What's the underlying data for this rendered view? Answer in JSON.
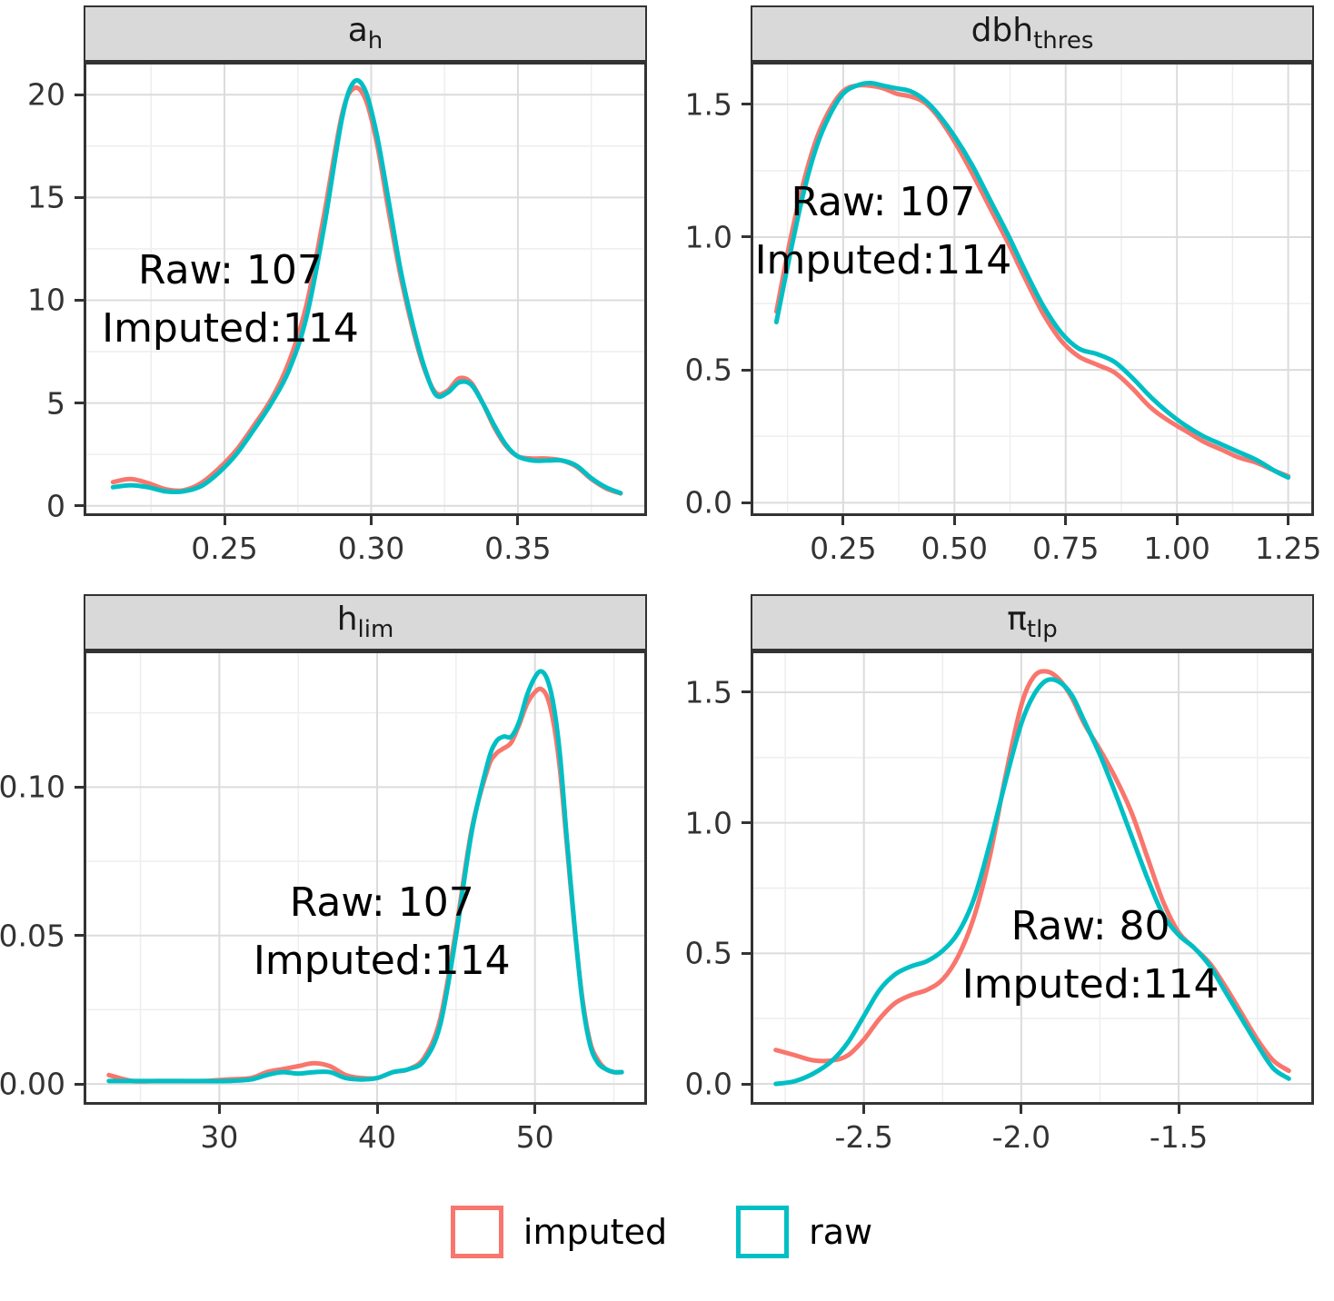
{
  "figure": {
    "description": "Faceted density plots comparing raw vs imputed parameter distributions"
  },
  "colors": {
    "imputed": "#F8766D",
    "raw": "#00BFC4",
    "strip_bg": "#D9D9D9",
    "panel_border": "#333333",
    "grid_major": "#DCDCDC",
    "grid_minor": "#EEEEEE",
    "axis_text": "#333333"
  },
  "legend": {
    "items": [
      {
        "label": "imputed",
        "color": "#F8766D"
      },
      {
        "label": "raw",
        "color": "#00BFC4"
      }
    ]
  },
  "chart_data": [
    {
      "type": "line",
      "title": {
        "main": "a",
        "sub": "h"
      },
      "xlim": [
        0.202,
        0.394
      ],
      "ylim": [
        -0.5,
        21.6
      ],
      "xticks": [
        0.25,
        0.3,
        0.35
      ],
      "xtick_labels": [
        "0.25",
        "0.30",
        "0.35"
      ],
      "yticks": [
        0,
        5,
        10,
        15,
        20
      ],
      "ytick_labels": [
        "0",
        "5",
        "10",
        "15",
        "20"
      ],
      "annotation": {
        "lines": [
          "Raw: 107",
          "Imputed:114"
        ],
        "x": 0.252,
        "y": 10.0
      },
      "series": [
        {
          "name": "imputed",
          "color": "#F8766D",
          "x": [
            0.212,
            0.218,
            0.224,
            0.23,
            0.236,
            0.242,
            0.248,
            0.254,
            0.26,
            0.266,
            0.272,
            0.278,
            0.284,
            0.29,
            0.294,
            0.298,
            0.302,
            0.306,
            0.31,
            0.314,
            0.318,
            0.322,
            0.326,
            0.33,
            0.334,
            0.338,
            0.342,
            0.346,
            0.35,
            0.355,
            0.36,
            0.365,
            0.37,
            0.375,
            0.38,
            0.385
          ],
          "y": [
            1.15,
            1.3,
            1.1,
            0.8,
            0.75,
            1.1,
            1.8,
            2.7,
            3.9,
            5.2,
            7.0,
            9.8,
            14.2,
            19.0,
            20.3,
            19.8,
            17.6,
            14.3,
            11.2,
            8.7,
            6.7,
            5.5,
            5.6,
            6.2,
            6.0,
            5.0,
            3.8,
            2.9,
            2.4,
            2.3,
            2.3,
            2.2,
            1.9,
            1.3,
            0.85,
            0.6
          ]
        },
        {
          "name": "raw",
          "color": "#00BFC4",
          "x": [
            0.212,
            0.218,
            0.224,
            0.23,
            0.236,
            0.242,
            0.248,
            0.254,
            0.26,
            0.266,
            0.272,
            0.278,
            0.284,
            0.29,
            0.294,
            0.298,
            0.302,
            0.306,
            0.31,
            0.314,
            0.318,
            0.322,
            0.326,
            0.33,
            0.334,
            0.338,
            0.342,
            0.346,
            0.35,
            0.355,
            0.36,
            0.365,
            0.37,
            0.375,
            0.38,
            0.385
          ],
          "y": [
            0.9,
            1.0,
            0.9,
            0.7,
            0.7,
            0.95,
            1.6,
            2.5,
            3.7,
            5.0,
            6.6,
            9.2,
            13.6,
            18.8,
            20.6,
            20.2,
            18.0,
            14.8,
            11.5,
            8.9,
            6.8,
            5.4,
            5.5,
            6.0,
            5.9,
            5.0,
            3.9,
            2.95,
            2.4,
            2.2,
            2.2,
            2.2,
            1.95,
            1.35,
            0.9,
            0.62
          ]
        }
      ]
    },
    {
      "type": "line",
      "title": {
        "main": "dbh",
        "sub": "thres"
      },
      "xlim": [
        0.042,
        1.308
      ],
      "ylim": [
        -0.05,
        1.66
      ],
      "xticks": [
        0.25,
        0.5,
        0.75,
        1.0,
        1.25
      ],
      "xtick_labels": [
        "0.25",
        "0.50",
        "0.75",
        "1.00",
        "1.25"
      ],
      "yticks": [
        0.0,
        0.5,
        1.0,
        1.5
      ],
      "ytick_labels": [
        "0.0",
        "0.5",
        "1.0",
        "1.5"
      ],
      "annotation": {
        "lines": [
          "Raw: 107",
          "Imputed:114"
        ],
        "x": 0.34,
        "y": 1.02
      },
      "series": [
        {
          "name": "imputed",
          "color": "#F8766D",
          "x": [
            0.1,
            0.13,
            0.16,
            0.19,
            0.22,
            0.25,
            0.28,
            0.31,
            0.34,
            0.37,
            0.4,
            0.43,
            0.46,
            0.5,
            0.54,
            0.58,
            0.62,
            0.66,
            0.7,
            0.74,
            0.78,
            0.82,
            0.86,
            0.9,
            0.94,
            0.98,
            1.02,
            1.06,
            1.1,
            1.14,
            1.18,
            1.22,
            1.25
          ],
          "y": [
            0.72,
            0.98,
            1.2,
            1.37,
            1.48,
            1.55,
            1.57,
            1.57,
            1.56,
            1.54,
            1.53,
            1.51,
            1.46,
            1.36,
            1.24,
            1.11,
            0.98,
            0.84,
            0.71,
            0.61,
            0.55,
            0.52,
            0.49,
            0.43,
            0.36,
            0.31,
            0.27,
            0.23,
            0.2,
            0.17,
            0.15,
            0.12,
            0.1
          ]
        },
        {
          "name": "raw",
          "color": "#00BFC4",
          "x": [
            0.1,
            0.13,
            0.16,
            0.19,
            0.22,
            0.25,
            0.28,
            0.31,
            0.34,
            0.37,
            0.4,
            0.43,
            0.46,
            0.5,
            0.54,
            0.58,
            0.62,
            0.66,
            0.7,
            0.74,
            0.78,
            0.82,
            0.86,
            0.9,
            0.94,
            0.98,
            1.02,
            1.06,
            1.1,
            1.14,
            1.18,
            1.22,
            1.25
          ],
          "y": [
            0.68,
            0.93,
            1.16,
            1.34,
            1.46,
            1.54,
            1.57,
            1.58,
            1.57,
            1.56,
            1.55,
            1.52,
            1.47,
            1.38,
            1.27,
            1.14,
            1.01,
            0.87,
            0.74,
            0.64,
            0.58,
            0.56,
            0.53,
            0.47,
            0.4,
            0.34,
            0.29,
            0.25,
            0.22,
            0.19,
            0.16,
            0.12,
            0.095
          ]
        }
      ]
    },
    {
      "type": "line",
      "title": {
        "main": "h",
        "sub": "lim"
      },
      "xlim": [
        21.4,
        57.1
      ],
      "ylim": [
        -0.007,
        0.146
      ],
      "xticks": [
        30,
        40,
        50
      ],
      "xtick_labels": [
        "30",
        "40",
        "50"
      ],
      "yticks": [
        0.0,
        0.05,
        0.1
      ],
      "ytick_labels": [
        "0.00",
        "0.05",
        "0.10"
      ],
      "annotation": {
        "lines": [
          "Raw: 107",
          "Imputed:114"
        ],
        "x": 40.3,
        "y": 0.051
      },
      "series": [
        {
          "name": "imputed",
          "color": "#F8766D",
          "x": [
            23,
            24.5,
            26,
            27.5,
            29,
            30.5,
            32,
            33,
            34,
            35,
            36,
            37,
            38,
            39,
            40,
            41,
            42,
            43,
            44,
            45,
            46,
            47,
            47.5,
            48,
            48.5,
            49,
            49.5,
            50,
            50.4,
            50.8,
            51.2,
            51.6,
            52,
            52.5,
            53,
            53.5,
            54,
            54.5,
            55,
            55.5
          ],
          "y": [
            0.003,
            0.001,
            0.001,
            0.001,
            0.001,
            0.0015,
            0.002,
            0.004,
            0.005,
            0.006,
            0.007,
            0.006,
            0.003,
            0.002,
            0.002,
            0.004,
            0.005,
            0.009,
            0.022,
            0.052,
            0.086,
            0.106,
            0.111,
            0.113,
            0.115,
            0.121,
            0.128,
            0.132,
            0.133,
            0.13,
            0.121,
            0.105,
            0.082,
            0.053,
            0.029,
            0.014,
            0.008,
            0.005,
            0.004,
            0.004
          ]
        },
        {
          "name": "raw",
          "color": "#00BFC4",
          "x": [
            23,
            24.5,
            26,
            27.5,
            29,
            30.5,
            32,
            33,
            34,
            35,
            36,
            37,
            38,
            39,
            40,
            41,
            42,
            43,
            44,
            45,
            46,
            47,
            47.5,
            48,
            48.5,
            49,
            49.5,
            50,
            50.4,
            50.8,
            51.2,
            51.6,
            52,
            52.5,
            53,
            53.5,
            54,
            54.5,
            55,
            55.5
          ],
          "y": [
            0.001,
            0.001,
            0.001,
            0.001,
            0.001,
            0.001,
            0.0015,
            0.003,
            0.004,
            0.0035,
            0.004,
            0.004,
            0.002,
            0.0015,
            0.002,
            0.004,
            0.005,
            0.008,
            0.02,
            0.05,
            0.085,
            0.108,
            0.115,
            0.117,
            0.117,
            0.122,
            0.131,
            0.137,
            0.139,
            0.136,
            0.127,
            0.11,
            0.084,
            0.054,
            0.028,
            0.013,
            0.007,
            0.005,
            0.004,
            0.004
          ]
        }
      ]
    },
    {
      "type": "line",
      "title": {
        "main": "π",
        "sub": "tlp"
      },
      "xlim": [
        -2.86,
        -1.07
      ],
      "ylim": [
        -0.08,
        1.66
      ],
      "xticks": [
        -2.5,
        -2.0,
        -1.5
      ],
      "xtick_labels": [
        "-2.5",
        "-2.0",
        "-1.5"
      ],
      "yticks": [
        0.0,
        0.5,
        1.0,
        1.5
      ],
      "ytick_labels": [
        "0.0",
        "0.5",
        "1.0",
        "1.5"
      ],
      "annotation": {
        "lines": [
          "Raw: 80",
          "Imputed:114"
        ],
        "x": -1.78,
        "y": 0.49
      },
      "series": [
        {
          "name": "imputed",
          "color": "#F8766D",
          "x": [
            -2.78,
            -2.72,
            -2.66,
            -2.6,
            -2.55,
            -2.5,
            -2.45,
            -2.4,
            -2.35,
            -2.3,
            -2.25,
            -2.2,
            -2.15,
            -2.1,
            -2.05,
            -2.0,
            -1.96,
            -1.92,
            -1.88,
            -1.84,
            -1.8,
            -1.75,
            -1.7,
            -1.65,
            -1.6,
            -1.55,
            -1.5,
            -1.45,
            -1.4,
            -1.35,
            -1.3,
            -1.25,
            -1.2,
            -1.15
          ],
          "y": [
            0.13,
            0.11,
            0.09,
            0.09,
            0.11,
            0.17,
            0.25,
            0.31,
            0.34,
            0.36,
            0.4,
            0.49,
            0.64,
            0.87,
            1.18,
            1.45,
            1.56,
            1.58,
            1.55,
            1.48,
            1.38,
            1.28,
            1.17,
            1.04,
            0.87,
            0.7,
            0.58,
            0.52,
            0.46,
            0.37,
            0.27,
            0.17,
            0.09,
            0.05
          ]
        },
        {
          "name": "raw",
          "color": "#00BFC4",
          "x": [
            -2.78,
            -2.72,
            -2.66,
            -2.6,
            -2.55,
            -2.5,
            -2.45,
            -2.4,
            -2.35,
            -2.3,
            -2.25,
            -2.2,
            -2.15,
            -2.1,
            -2.05,
            -2.0,
            -1.96,
            -1.92,
            -1.88,
            -1.84,
            -1.8,
            -1.75,
            -1.7,
            -1.65,
            -1.6,
            -1.55,
            -1.5,
            -1.45,
            -1.4,
            -1.35,
            -1.3,
            -1.25,
            -1.2,
            -1.15
          ],
          "y": [
            0.0,
            0.01,
            0.04,
            0.09,
            0.16,
            0.26,
            0.36,
            0.42,
            0.45,
            0.47,
            0.51,
            0.58,
            0.71,
            0.92,
            1.16,
            1.38,
            1.49,
            1.545,
            1.54,
            1.49,
            1.39,
            1.26,
            1.11,
            0.95,
            0.79,
            0.65,
            0.57,
            0.52,
            0.45,
            0.35,
            0.25,
            0.15,
            0.06,
            0.02
          ]
        }
      ]
    }
  ]
}
